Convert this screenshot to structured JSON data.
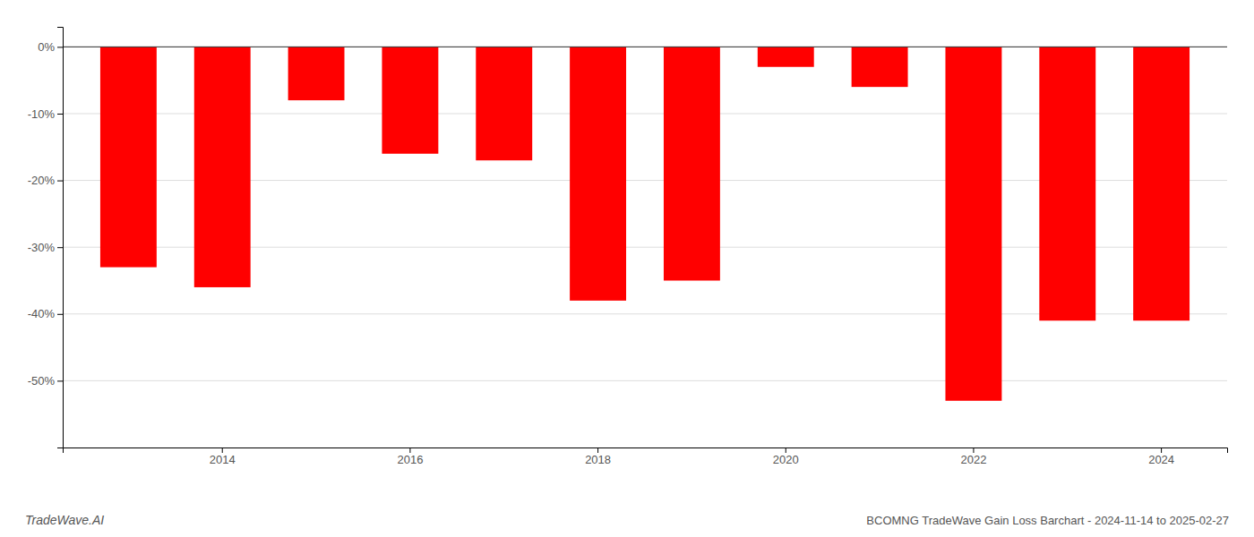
{
  "chart_data": {
    "type": "bar",
    "title": "BCOMNG TradeWave Gain Loss Barchart - 2024-11-14 to 2025-02-27",
    "annotations": [
      "TradeWave.AI"
    ],
    "categories": [
      null,
      "2014",
      null,
      "2016",
      null,
      "2018",
      null,
      "2020",
      null,
      "2022",
      null,
      "2024"
    ],
    "values": [
      -33,
      -36,
      -8,
      -16,
      -17,
      -38,
      -35,
      -3,
      -6,
      -53,
      -41,
      -41
    ],
    "color": "#ff0000",
    "ylim": [
      -60,
      3
    ],
    "yticks": [
      {
        "value": 0,
        "label": "0%"
      },
      {
        "value": -10,
        "label": "-10%"
      },
      {
        "value": -20,
        "label": "-20%"
      },
      {
        "value": -30,
        "label": "-30%"
      },
      {
        "value": -40,
        "label": "-40%"
      },
      {
        "value": -50,
        "label": "-50%"
      }
    ],
    "grid": true
  }
}
